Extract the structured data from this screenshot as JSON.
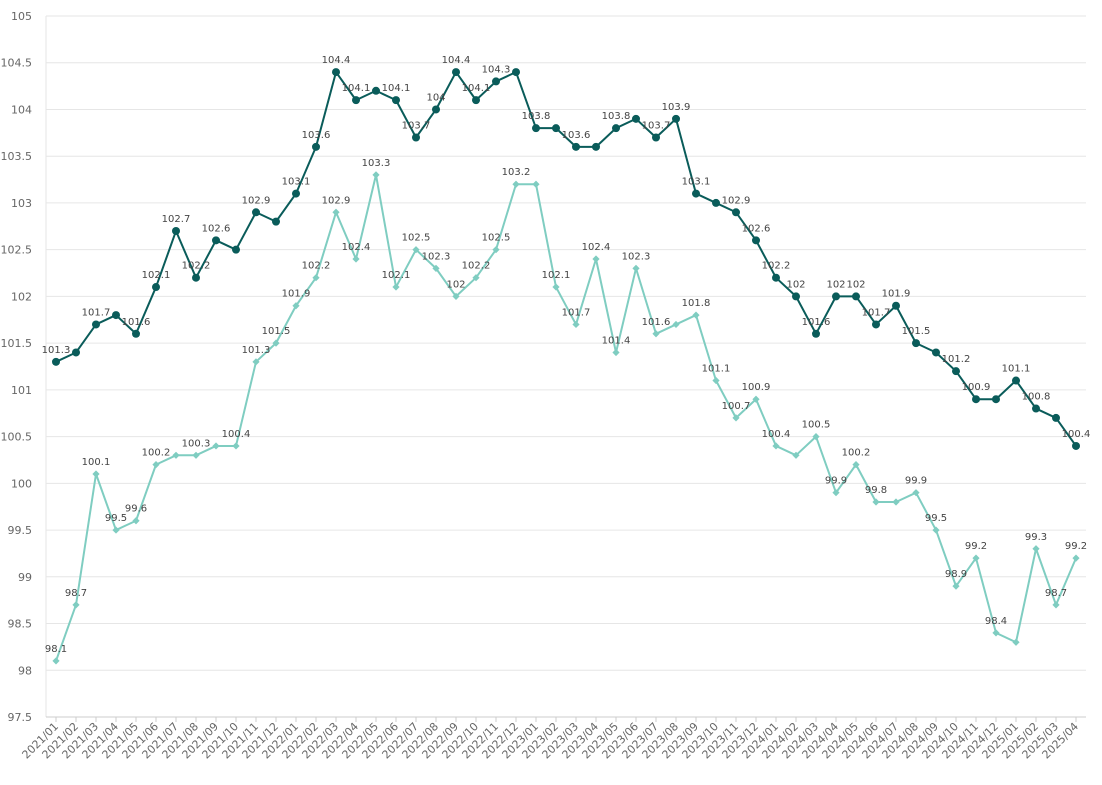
{
  "chart_data": {
    "type": "line",
    "title": "",
    "xlabel": "",
    "ylabel": "",
    "ylim": [
      97.5,
      105
    ],
    "yticks": [
      97.5,
      98,
      98.5,
      99,
      99.5,
      100,
      100.5,
      101,
      101.5,
      102,
      102.5,
      103,
      103.5,
      104,
      104.5,
      105
    ],
    "ytick_labels": [
      "97.5",
      "98",
      "98.5",
      "99",
      "99.5",
      "100",
      "100.5",
      "101",
      "101.5",
      "102",
      "102.5",
      "103",
      "103.5",
      "104",
      "104.5",
      "105"
    ],
    "grid": true,
    "legend": "none",
    "categories": [
      "2021/01",
      "2021/02",
      "2021/03",
      "2021/04",
      "2021/05",
      "2021/06",
      "2021/07",
      "2021/08",
      "2021/09",
      "2021/10",
      "2021/11",
      "2021/12",
      "2022/01",
      "2022/02",
      "2022/03",
      "2022/04",
      "2022/05",
      "2022/06",
      "2022/07",
      "2022/08",
      "2022/09",
      "2022/10",
      "2022/11",
      "2022/12",
      "2023/01",
      "2023/02",
      "2023/03",
      "2023/04",
      "2023/05",
      "2023/06",
      "2023/07",
      "2023/08",
      "2023/09",
      "2023/10",
      "2023/11",
      "2023/12",
      "2024/01",
      "2024/02",
      "2024/03",
      "2024/04",
      "2024/05",
      "2024/06",
      "2024/07",
      "2024/08",
      "2024/09",
      "2024/10",
      "2024/11",
      "2024/12",
      "2025/01",
      "2025/02",
      "2025/03",
      "2025/04"
    ],
    "series": [
      {
        "color": "#0a5c5a",
        "marker": "circle",
        "values": [
          101.3,
          101.4,
          101.7,
          101.8,
          101.6,
          102.1,
          102.7,
          102.2,
          102.6,
          102.5,
          102.9,
          102.8,
          103.1,
          103.6,
          104.4,
          104.1,
          104.2,
          104.1,
          103.7,
          104.0,
          104.4,
          104.1,
          104.3,
          104.4,
          103.8,
          103.8,
          103.6,
          103.6,
          103.8,
          103.9,
          103.7,
          103.9,
          103.1,
          103.0,
          102.9,
          102.6,
          102.2,
          102.0,
          101.6,
          102.0,
          102.0,
          101.7,
          101.9,
          101.5,
          101.4,
          101.2,
          100.9,
          100.9,
          101.1,
          100.8,
          100.7,
          100.4
        ],
        "labels": [
          "101.3",
          "",
          "101.7",
          "",
          "101.6",
          "102.1",
          "102.7",
          "102.2",
          "102.6",
          "",
          "102.9",
          "",
          "103.1",
          "103.6",
          "104.4",
          "104.1",
          "",
          "104.1",
          "103.7",
          "104",
          "104.4",
          "104.1",
          "104.3",
          "",
          "103.8",
          "",
          "103.6",
          "",
          "103.8",
          "",
          "103.7",
          "103.9",
          "103.1",
          "",
          "102.9",
          "102.6",
          "102.2",
          "102",
          "101.6",
          "102",
          "102",
          "101.7",
          "101.9",
          "101.5",
          "",
          "101.2",
          "100.9",
          "",
          "101.1",
          "100.8",
          "",
          "100.4"
        ]
      },
      {
        "color": "#7fcdc1",
        "marker": "diamond",
        "values": [
          98.1,
          98.7,
          100.1,
          99.5,
          99.6,
          100.2,
          100.3,
          100.3,
          100.4,
          100.4,
          101.3,
          101.5,
          101.9,
          102.2,
          102.9,
          102.4,
          103.3,
          102.1,
          102.5,
          102.3,
          102.0,
          102.2,
          102.5,
          103.2,
          103.2,
          102.1,
          101.7,
          102.4,
          101.4,
          102.3,
          101.6,
          101.7,
          101.8,
          101.1,
          100.7,
          100.9,
          100.4,
          100.3,
          100.5,
          99.9,
          100.2,
          99.8,
          99.8,
          99.9,
          99.5,
          98.9,
          99.2,
          98.4,
          98.3,
          99.3,
          98.7,
          99.2
        ],
        "labels": [
          "98.1",
          "98.7",
          "100.1",
          "99.5",
          "99.6",
          "100.2",
          "",
          "100.3",
          "",
          "100.4",
          "101.3",
          "101.5",
          "101.9",
          "102.2",
          "102.9",
          "102.4",
          "103.3",
          "102.1",
          "102.5",
          "102.3",
          "102",
          "102.2",
          "102.5",
          "103.2",
          "",
          "102.1",
          "101.7",
          "102.4",
          "101.4",
          "102.3",
          "101.6",
          "",
          "101.8",
          "101.1",
          "100.7",
          "100.9",
          "100.4",
          "",
          "100.5",
          "99.9",
          "100.2",
          "99.8",
          "",
          "99.9",
          "99.5",
          "98.9",
          "99.2",
          "98.4",
          "",
          "99.3",
          "98.7",
          "99.2"
        ]
      }
    ]
  }
}
